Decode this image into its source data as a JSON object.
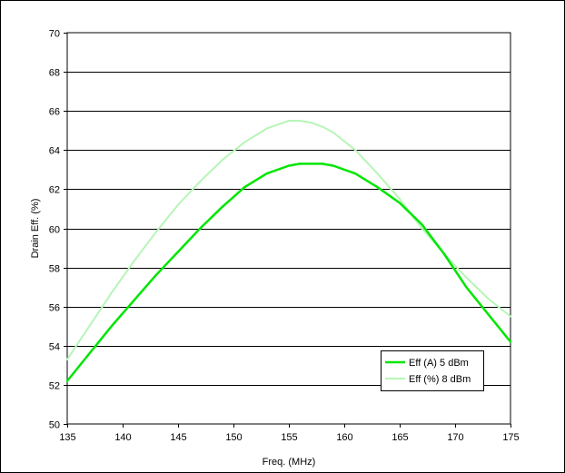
{
  "chart_data": {
    "type": "line",
    "title": "",
    "xlabel": "Freq. (MHz)",
    "ylabel": "Drain Eff. (%)",
    "xlim": [
      135,
      175
    ],
    "ylim": [
      50,
      70
    ],
    "xticks": [
      135,
      140,
      145,
      150,
      155,
      160,
      165,
      170,
      175
    ],
    "yticks": [
      50,
      52,
      54,
      56,
      58,
      60,
      62,
      64,
      66,
      68,
      70
    ],
    "grid": "horizontal",
    "legend_position": "bottom-right",
    "series": [
      {
        "name": "Eff (A) 5 dBm",
        "color": "#00e600",
        "x": [
          135,
          137,
          139,
          141,
          143,
          145,
          147,
          149,
          151,
          153,
          155,
          156,
          157,
          158,
          159,
          161,
          163,
          165,
          167,
          169,
          171,
          173,
          175
        ],
        "y": [
          52.2,
          53.6,
          55.0,
          56.3,
          57.6,
          58.8,
          60.0,
          61.1,
          62.1,
          62.8,
          63.2,
          63.3,
          63.3,
          63.3,
          63.2,
          62.8,
          62.1,
          61.3,
          60.2,
          58.7,
          57.0,
          55.6,
          54.2
        ]
      },
      {
        "name": "Eff (%) 8 dBm",
        "color": "#b7f5b7",
        "x": [
          135,
          137,
          139,
          141,
          143,
          145,
          147,
          149,
          151,
          153,
          154,
          155,
          156,
          157,
          158,
          159,
          161,
          163,
          165,
          167,
          169,
          171,
          173,
          175
        ],
        "y": [
          53.3,
          55.0,
          56.7,
          58.3,
          59.8,
          61.2,
          62.4,
          63.5,
          64.4,
          65.1,
          65.3,
          65.5,
          65.5,
          65.4,
          65.2,
          64.9,
          64.0,
          62.8,
          61.5,
          60.0,
          58.7,
          57.5,
          56.4,
          55.5
        ]
      }
    ]
  }
}
